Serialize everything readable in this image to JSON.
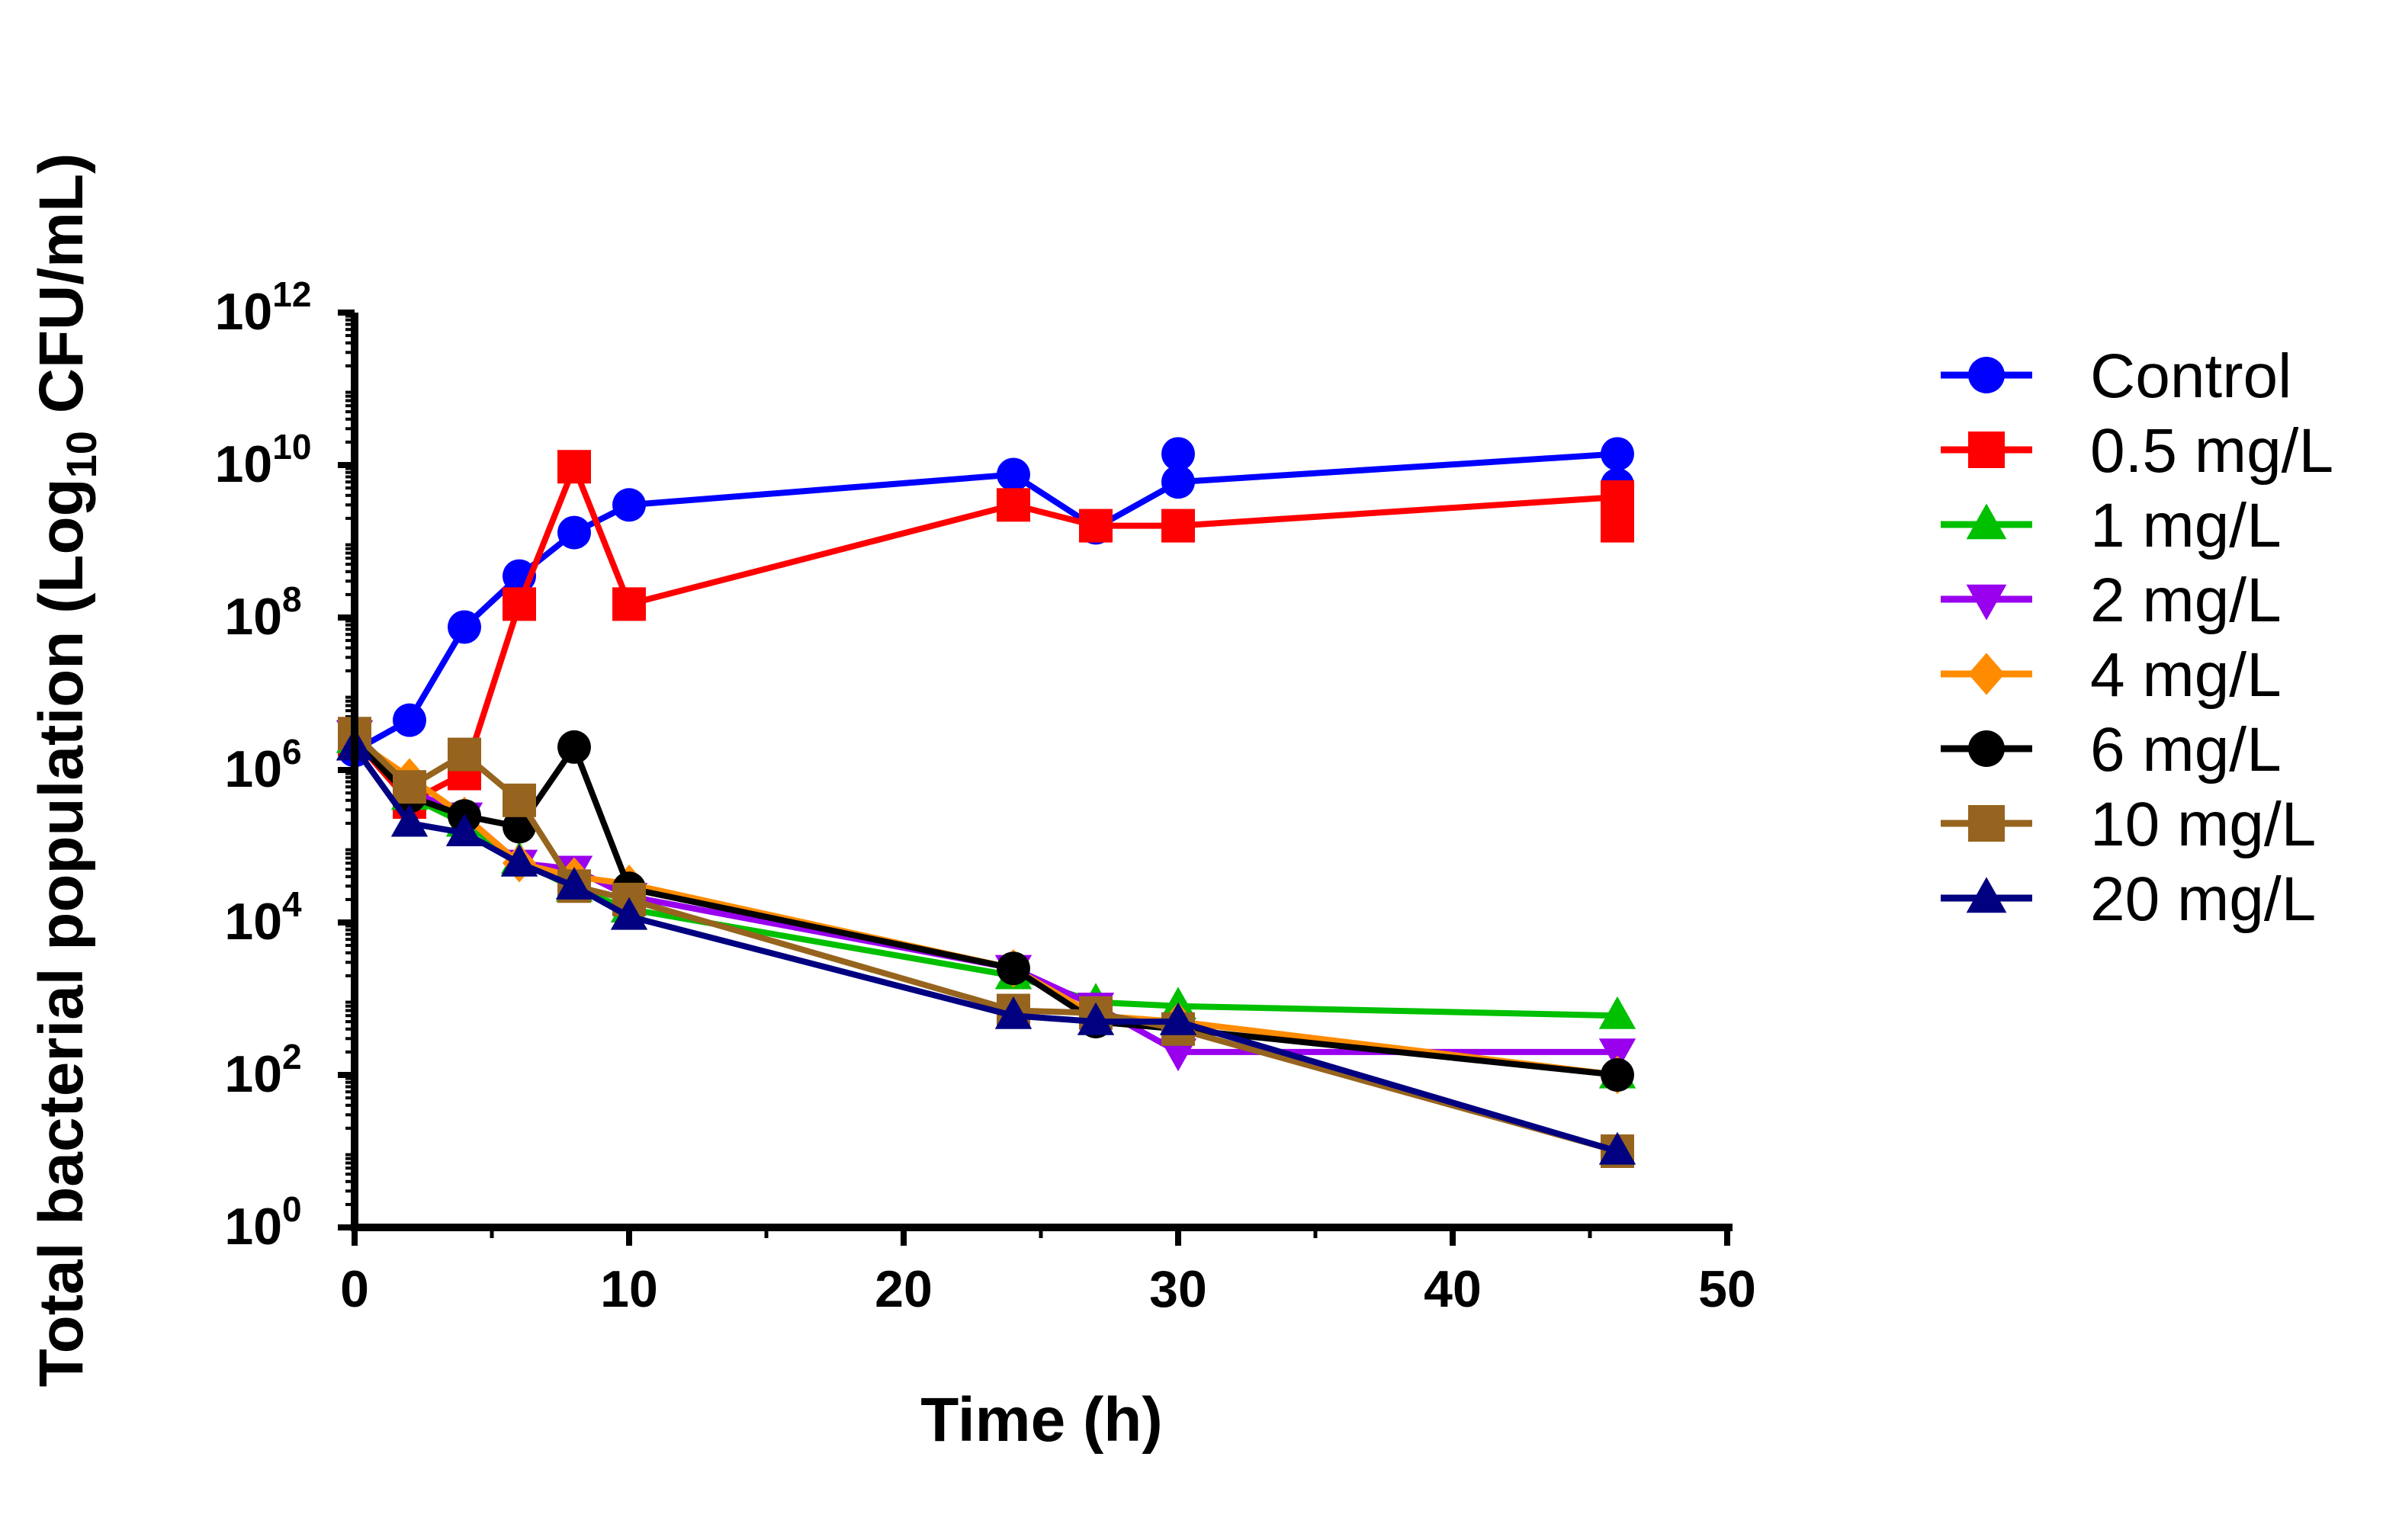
{
  "chart_data": {
    "type": "line",
    "title": "",
    "xlabel": "Time (h)",
    "ylabel": {
      "prefix": "Total bacterial population (Log",
      "subscript": "10",
      "suffix": " CFU/mL)"
    },
    "y_scale": "log10",
    "xlim": [
      0,
      50
    ],
    "ylim_exponent": [
      0,
      12
    ],
    "x_ticks": [
      0,
      10,
      20,
      30,
      40,
      50
    ],
    "x_tick_labels": [
      "0",
      "10",
      "20",
      "30",
      "40",
      "50"
    ],
    "y_ticks": [
      {
        "base": "10",
        "exp": "0"
      },
      {
        "base": "10",
        "exp": "2"
      },
      {
        "base": "10",
        "exp": "4"
      },
      {
        "base": "10",
        "exp": "6"
      },
      {
        "base": "10",
        "exp": "8"
      },
      {
        "base": "10",
        "exp": "10"
      },
      {
        "base": "10",
        "exp": "12"
      }
    ],
    "legend_position": "right",
    "series": [
      {
        "name": "Control",
        "color": "#0000ff",
        "marker": "circle",
        "points": [
          [
            0,
            1800000.0
          ],
          [
            2,
            4500000.0
          ],
          [
            4,
            75000000.0
          ],
          [
            6,
            350000000.0
          ],
          [
            8,
            1300000000.0
          ],
          [
            10,
            3000000000.0
          ],
          [
            24,
            7500000000.0
          ],
          [
            27,
            1500000000.0
          ],
          [
            30,
            6000000000.0
          ],
          [
            30,
            14000000000.0
          ],
          [
            46,
            14000000000.0
          ],
          [
            46,
            5500000000.0
          ]
        ]
      },
      {
        "name": "0.5 mg/L",
        "color": "#ff0000",
        "marker": "square",
        "points": [
          [
            0,
            2500000.0
          ],
          [
            2,
            380000.0
          ],
          [
            4,
            900000.0
          ],
          [
            6,
            150000000.0
          ],
          [
            8,
            9500000000.0
          ],
          [
            10,
            150000000.0
          ],
          [
            24,
            3000000000.0
          ],
          [
            27,
            1600000000.0
          ],
          [
            30,
            1600000000.0
          ],
          [
            46,
            3800000000.0
          ],
          [
            46,
            1600000000.0
          ]
        ]
      },
      {
        "name": "1 mg/L",
        "color": "#00c000",
        "marker": "triangle-up",
        "points": [
          [
            0,
            2500000.0
          ],
          [
            2,
            450000.0
          ],
          [
            4,
            200000.0
          ],
          [
            6,
            65000.0
          ],
          [
            8,
            28000.0
          ],
          [
            10,
            15000.0
          ],
          [
            24,
            2000.0
          ],
          [
            27,
            900.0
          ],
          [
            30,
            800.0
          ],
          [
            46,
            600.0
          ],
          [
            46,
            100.0
          ]
        ]
      },
      {
        "name": "2 mg/L",
        "color": "#9900ee",
        "marker": "triangle-down",
        "points": [
          [
            0,
            3000000.0
          ],
          [
            2,
            550000.0
          ],
          [
            4,
            250000.0
          ],
          [
            6,
            60000.0
          ],
          [
            8,
            50000.0
          ],
          [
            10,
            22000.0
          ],
          [
            24,
            2500.0
          ],
          [
            27,
            800.0
          ],
          [
            30,
            200.0
          ],
          [
            46,
            200.0
          ]
        ]
      },
      {
        "name": "4 mg/L",
        "color": "#ff8c00",
        "marker": "diamond",
        "points": [
          [
            0,
            2500000.0
          ],
          [
            2,
            800000.0
          ],
          [
            4,
            250000.0
          ],
          [
            6,
            60000.0
          ],
          [
            8,
            40000.0
          ],
          [
            10,
            32000.0
          ],
          [
            24,
            2500.0
          ],
          [
            27,
            600.0
          ],
          [
            30,
            500.0
          ],
          [
            46,
            100.0
          ]
        ]
      },
      {
        "name": "6 mg/L",
        "color": "#000000",
        "marker": "circle",
        "points": [
          [
            0,
            2500000.0
          ],
          [
            2,
            450000.0
          ],
          [
            4,
            250000.0
          ],
          [
            6,
            180000.0
          ],
          [
            8,
            2000000.0
          ],
          [
            10,
            28000.0
          ],
          [
            24,
            2500.0
          ],
          [
            27,
            500.0
          ],
          [
            30,
            400.0
          ],
          [
            46,
            100.0
          ]
        ]
      },
      {
        "name": "10 mg/L",
        "color": "#96641e",
        "marker": "square",
        "points": [
          [
            0,
            3000000.0
          ],
          [
            2,
            600000.0
          ],
          [
            4,
            1600000.0
          ],
          [
            6,
            400000.0
          ],
          [
            8,
            30000.0
          ],
          [
            10,
            20000.0
          ],
          [
            24,
            700.0
          ],
          [
            27,
            650.0
          ],
          [
            30,
            400.0
          ],
          [
            46,
            10.0
          ]
        ]
      },
      {
        "name": "20 mg/L",
        "color": "#000080",
        "marker": "triangle-up",
        "points": [
          [
            0,
            2000000.0
          ],
          [
            2,
            200000.0
          ],
          [
            4,
            150000.0
          ],
          [
            6,
            60000.0
          ],
          [
            8,
            30000.0
          ],
          [
            10,
            12000.0
          ],
          [
            24,
            600.0
          ],
          [
            27,
            500.0
          ],
          [
            30,
            500.0
          ],
          [
            46,
            10.0
          ]
        ]
      }
    ]
  }
}
